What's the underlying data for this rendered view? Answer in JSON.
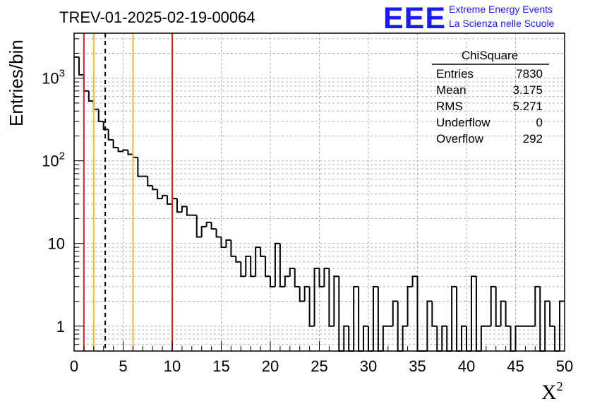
{
  "chart_data": {
    "type": "histogram",
    "title": "TREV-01-2025-02-19-00064",
    "xlabel": "X²",
    "xlabel_main": "X",
    "xlabel_sup": "2",
    "ylabel": "Entries/bin",
    "xlim": [
      0,
      50
    ],
    "ylim": [
      0.5,
      3500
    ],
    "yscale": "log",
    "grid": true,
    "bin_width": 0.5,
    "x_ticks": [
      0,
      5,
      10,
      15,
      20,
      25,
      30,
      35,
      40,
      45,
      50
    ],
    "x_tick_labels": [
      "0",
      "5",
      "10",
      "15",
      "20",
      "25",
      "30",
      "35",
      "40",
      "45",
      "50"
    ],
    "y_ticks": [
      {
        "value": 1,
        "base": "1",
        "sup": ""
      },
      {
        "value": 10,
        "base": "10",
        "sup": ""
      },
      {
        "value": 100,
        "base": "10",
        "sup": "2"
      },
      {
        "value": 1000,
        "base": "10",
        "sup": "3"
      }
    ],
    "counts": [
      1800,
      1100,
      700,
      530,
      420,
      300,
      240,
      180,
      145,
      130,
      135,
      120,
      110,
      65,
      65,
      50,
      45,
      35,
      38,
      30,
      35,
      24,
      28,
      22,
      22,
      12,
      16,
      18,
      15,
      12,
      9,
      11,
      7,
      6,
      4,
      7,
      4,
      9,
      7,
      4,
      3,
      10,
      3,
      4,
      5,
      3,
      2,
      3,
      1,
      5,
      3,
      5,
      1,
      4,
      0.5,
      1,
      0.5,
      3,
      0.5,
      1,
      0.5,
      3,
      0.5,
      1,
      1,
      2,
      0.5,
      1,
      3,
      4,
      0.5,
      0.5,
      2,
      1,
      0.5,
      1,
      0.5,
      3,
      0.5,
      1,
      0.5,
      4,
      0.5,
      1,
      1,
      3,
      1,
      2,
      1,
      0.5,
      1,
      1,
      1,
      1,
      3,
      0.5,
      2,
      1,
      0.5,
      2
    ],
    "vertical_lines": [
      {
        "x": 1,
        "color": "#e02020",
        "style": "solid"
      },
      {
        "x": 2,
        "color": "#f0c020",
        "style": "solid"
      },
      {
        "x": 3.175,
        "color": "#000000",
        "style": "dashed"
      },
      {
        "x": 6,
        "color": "#f0c020",
        "style": "solid"
      },
      {
        "x": 10,
        "color": "#e02020",
        "style": "solid"
      }
    ]
  },
  "logo": {
    "text": "EEE",
    "line1": "Extreme Energy Events",
    "line2": "La Scienza nelle Scuole",
    "color": "#1a1aff"
  },
  "stats": {
    "title": "ChiSquare",
    "rows": [
      {
        "label": "Entries",
        "value": "7830"
      },
      {
        "label": "Mean",
        "value": "3.175"
      },
      {
        "label": "RMS",
        "value": "5.271"
      },
      {
        "label": "Underflow",
        "value": "0"
      },
      {
        "label": "Overflow",
        "value": "292"
      }
    ]
  }
}
